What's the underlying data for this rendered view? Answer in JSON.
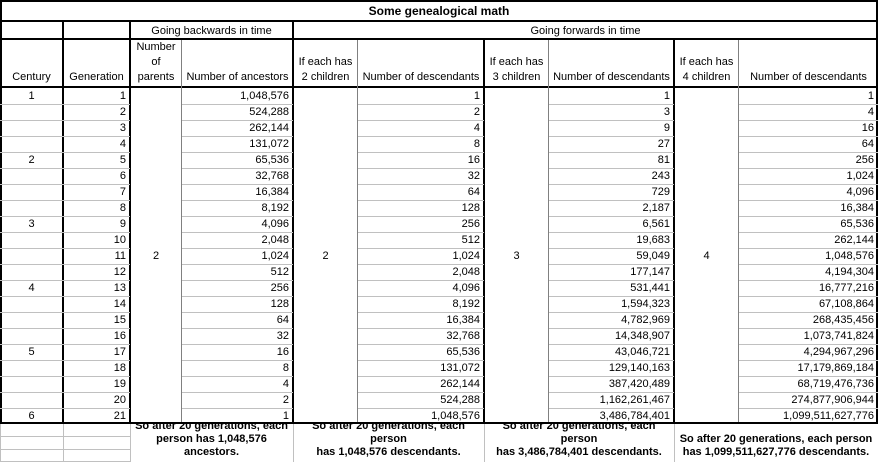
{
  "title": "Some genealogical math",
  "groups": {
    "backwards": "Going backwards in time",
    "forwards": "Going forwards in time"
  },
  "headers": {
    "century": "Century",
    "generation": "Generation",
    "parents": "Number\nof\nparents",
    "ancestors": "Number of ancestors",
    "has2": "If each has\n2 children",
    "desc2": "Number of descendants",
    "has3": "If each has\n3 children",
    "desc3": "Number of descendants",
    "has4": "If each has\n4 children",
    "desc4": "Number of descendants"
  },
  "merged_values": {
    "parents": "2",
    "children2": "2",
    "children3": "3",
    "children4": "4"
  },
  "rows": [
    {
      "century": "1",
      "generation": "1",
      "ancestors": "1,048,576",
      "desc2": "1",
      "desc3": "1",
      "desc4": "1"
    },
    {
      "century": "",
      "generation": "2",
      "ancestors": "524,288",
      "desc2": "2",
      "desc3": "3",
      "desc4": "4"
    },
    {
      "century": "",
      "generation": "3",
      "ancestors": "262,144",
      "desc2": "4",
      "desc3": "9",
      "desc4": "16"
    },
    {
      "century": "",
      "generation": "4",
      "ancestors": "131,072",
      "desc2": "8",
      "desc3": "27",
      "desc4": "64"
    },
    {
      "century": "2",
      "generation": "5",
      "ancestors": "65,536",
      "desc2": "16",
      "desc3": "81",
      "desc4": "256"
    },
    {
      "century": "",
      "generation": "6",
      "ancestors": "32,768",
      "desc2": "32",
      "desc3": "243",
      "desc4": "1,024"
    },
    {
      "century": "",
      "generation": "7",
      "ancestors": "16,384",
      "desc2": "64",
      "desc3": "729",
      "desc4": "4,096"
    },
    {
      "century": "",
      "generation": "8",
      "ancestors": "8,192",
      "desc2": "128",
      "desc3": "2,187",
      "desc4": "16,384"
    },
    {
      "century": "3",
      "generation": "9",
      "ancestors": "4,096",
      "desc2": "256",
      "desc3": "6,561",
      "desc4": "65,536"
    },
    {
      "century": "",
      "generation": "10",
      "ancestors": "2,048",
      "desc2": "512",
      "desc3": "19,683",
      "desc4": "262,144"
    },
    {
      "century": "",
      "generation": "11",
      "ancestors": "1,024",
      "desc2": "1,024",
      "desc3": "59,049",
      "desc4": "1,048,576"
    },
    {
      "century": "",
      "generation": "12",
      "ancestors": "512",
      "desc2": "2,048",
      "desc3": "177,147",
      "desc4": "4,194,304"
    },
    {
      "century": "4",
      "generation": "13",
      "ancestors": "256",
      "desc2": "4,096",
      "desc3": "531,441",
      "desc4": "16,777,216"
    },
    {
      "century": "",
      "generation": "14",
      "ancestors": "128",
      "desc2": "8,192",
      "desc3": "1,594,323",
      "desc4": "67,108,864"
    },
    {
      "century": "",
      "generation": "15",
      "ancestors": "64",
      "desc2": "16,384",
      "desc3": "4,782,969",
      "desc4": "268,435,456"
    },
    {
      "century": "",
      "generation": "16",
      "ancestors": "32",
      "desc2": "32,768",
      "desc3": "14,348,907",
      "desc4": "1,073,741,824"
    },
    {
      "century": "5",
      "generation": "17",
      "ancestors": "16",
      "desc2": "65,536",
      "desc3": "43,046,721",
      "desc4": "4,294,967,296"
    },
    {
      "century": "",
      "generation": "18",
      "ancestors": "8",
      "desc2": "131,072",
      "desc3": "129,140,163",
      "desc4": "17,179,869,184"
    },
    {
      "century": "",
      "generation": "19",
      "ancestors": "4",
      "desc2": "262,144",
      "desc3": "387,420,489",
      "desc4": "68,719,476,736"
    },
    {
      "century": "",
      "generation": "20",
      "ancestors": "2",
      "desc2": "524,288",
      "desc3": "1,162,261,467",
      "desc4": "274,877,906,944"
    },
    {
      "century": "6",
      "generation": "21",
      "ancestors": "1",
      "desc2": "1,048,576",
      "desc3": "3,486,784,401",
      "desc4": "1,099,511,627,776"
    }
  ],
  "footnotes": {
    "ancestors": "So after 20 generations, each\nperson has 1,048,576 ancestors.",
    "desc2": "So after 20 generations, each person\nhas 1,048,576 descendants.",
    "desc3": "So after 20 generations, each person\nhas 3,486,784,401 descendants.",
    "desc4": "So after 20 generations, each person\nhas 1,099,511,627,776 descendants."
  },
  "colors": {
    "background": "#ffffff",
    "text": "#000000",
    "major_border": "#000000",
    "minor_vertical": "#808080",
    "grid_line": "#c0c0c0"
  }
}
